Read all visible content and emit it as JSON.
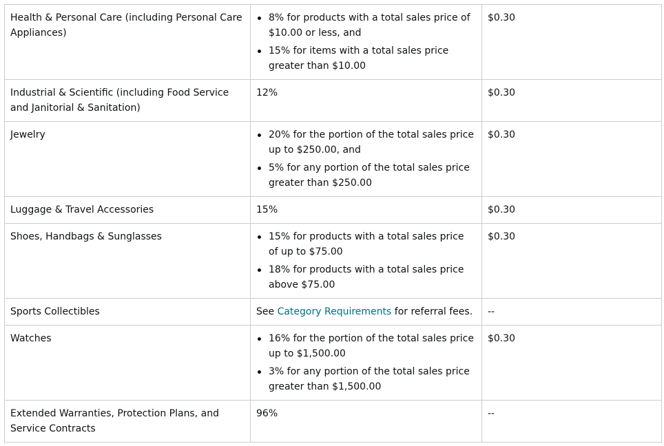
{
  "rows": [
    {
      "category": "Health & Personal Care (including Personal Care Appliances)",
      "fee_items": [
        "8% for products with a total sales price of $10.00 or less, and",
        "15% for items with a total sales price greater than $10.00"
      ],
      "min_fee": "$0.30"
    },
    {
      "category": "Industrial & Scientific (including Food Service and Janitorial & Sanitation)",
      "fee_text": "12%",
      "min_fee": "$0.30"
    },
    {
      "category": "Jewelry",
      "fee_items": [
        "20% for the portion of the total sales price up to $250.00, and",
        "5% for any portion of the total sales price greater than $250.00"
      ],
      "min_fee": "$0.30"
    },
    {
      "category": "Luggage & Travel Accessories",
      "fee_text": "15%",
      "min_fee": "$0.30"
    },
    {
      "category": "Shoes, Handbags & Sunglasses",
      "fee_items": [
        "15% for products with a total sales price of up to $75.00",
        "18% for products with a total sales price above $75.00"
      ],
      "min_fee": "$0.30"
    },
    {
      "category": "Sports Collectibles",
      "fee_prefix": "See ",
      "fee_link": "Category Requirements",
      "fee_suffix": " for referral fees.",
      "min_fee": "--"
    },
    {
      "category": "Watches",
      "fee_items": [
        "16% for the portion of the total sales price up to $1,500.00",
        "3% for any portion of the total sales price greater than $1,500.00"
      ],
      "min_fee": "$0.30"
    },
    {
      "category": "Extended Warranties, Protection Plans, and Service Contracts",
      "fee_text": "96%",
      "min_fee": "--"
    }
  ],
  "colors": {
    "text": "#0f1111",
    "link": "#007185",
    "border": "#cccccc"
  }
}
